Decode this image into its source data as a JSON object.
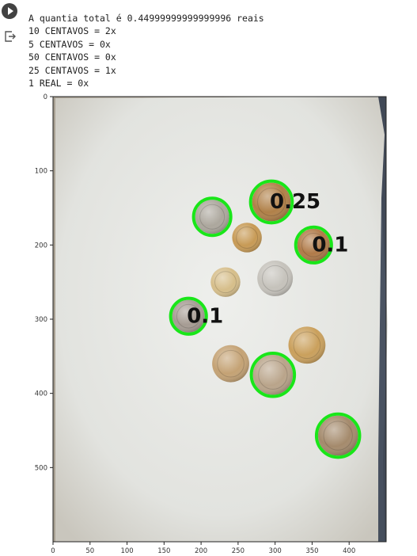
{
  "cell": {
    "run_icon": "play-icon",
    "output_icon": "output-arrow-icon",
    "output_lines": [
      "A quantia total é 0.44999999999999996 reais",
      "10 CENTAVOS = 2x",
      "5 CENTAVOS = 0x",
      "50 CENTAVOS = 0x",
      "25 CENTAVOS = 1x",
      "1 REAL = 0x"
    ]
  },
  "figure": {
    "x_ticks": [
      "0",
      "50",
      "100",
      "150",
      "200",
      "250",
      "300",
      "350",
      "400"
    ],
    "y_ticks": [
      "0",
      "100",
      "200",
      "300",
      "400",
      "500"
    ],
    "xlim": [
      0,
      450
    ],
    "ylim": [
      600,
      0
    ],
    "coins": [
      {
        "x": 215,
        "y": 162,
        "r": 23,
        "color": "#aca79d",
        "detected": true
      },
      {
        "x": 295,
        "y": 142,
        "r": 26,
        "color": "#b08048",
        "detected": true
      },
      {
        "x": 262,
        "y": 190,
        "r": 20,
        "color": "#c79a55",
        "detected": false
      },
      {
        "x": 352,
        "y": 200,
        "r": 22,
        "color": "#b07a48",
        "detected": true
      },
      {
        "x": 300,
        "y": 245,
        "r": 24,
        "color": "#c5c2bb",
        "detected": false
      },
      {
        "x": 233,
        "y": 250,
        "r": 20,
        "color": "#d6be8a",
        "detected": false
      },
      {
        "x": 183,
        "y": 296,
        "r": 22,
        "color": "#a69c93",
        "detected": true
      },
      {
        "x": 343,
        "y": 335,
        "r": 25,
        "color": "#caa05c",
        "detected": false
      },
      {
        "x": 240,
        "y": 360,
        "r": 25,
        "color": "#c4a274",
        "detected": false
      },
      {
        "x": 297,
        "y": 375,
        "r": 27,
        "color": "#b9a48a",
        "detected": true
      },
      {
        "x": 385,
        "y": 457,
        "r": 27,
        "color": "#a48a6c",
        "detected": true
      }
    ],
    "labels": [
      {
        "text": "0.25",
        "x": 295,
        "y": 142
      },
      {
        "text": "0.1",
        "x": 352,
        "y": 200
      },
      {
        "text": "0.1",
        "x": 183,
        "y": 296
      }
    ]
  }
}
